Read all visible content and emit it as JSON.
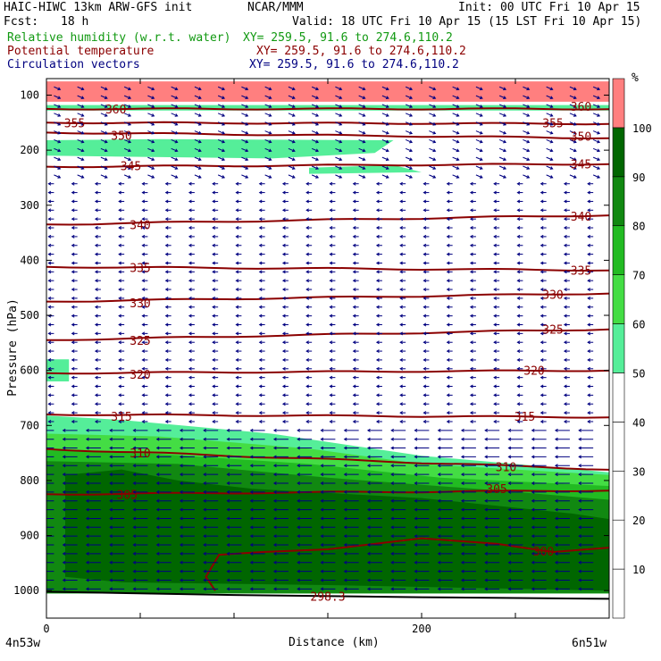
{
  "header": {
    "title": "HAIC-HIWC 13km ARW-GFS init",
    "org": "NCAR/MMM",
    "init": "Init: 00 UTC Fri 10 Apr 15",
    "fcst_label": "Fcst:",
    "fcst_value": "18 h",
    "valid": "Valid: 18 UTC Fri 10 Apr 15 (15 LST Fri 10 Apr 15)",
    "fields": [
      {
        "name": "Relative humidity (w.r.t. water)",
        "xy": "XY= 259.5, 91.6 to 274.6,110.2",
        "color": "#119911"
      },
      {
        "name": "Potential temperature",
        "xy": "XY= 259.5, 91.6 to 274.6,110.2",
        "color": "#8b0000"
      },
      {
        "name": "Circulation vectors",
        "xy": "XY= 259.5, 91.6 to 274.6,110.2",
        "color": "#000080"
      }
    ]
  },
  "chart_data": {
    "type": "cross-section (filled contour + line contour + vectors)",
    "xlabel": "Distance (km)",
    "ylabel": "Pressure (hPa)",
    "xlim": [
      0,
      300
    ],
    "ylim": [
      1050,
      70
    ],
    "x_ticks": [
      0,
      200
    ],
    "y_ticks": [
      100,
      200,
      300,
      400,
      500,
      600,
      700,
      800,
      900,
      1000
    ],
    "x_endpoints": [
      "4n53w",
      "6n51w"
    ],
    "colorbar": {
      "unit": "%",
      "levels": [
        10,
        20,
        30,
        40,
        50,
        60,
        70,
        80,
        90,
        100
      ],
      "colors": [
        "#ffffff",
        "#ffffff",
        "#ffffff",
        "#ffffff",
        "#ffffff",
        "#55ee99",
        "#44dd44",
        "#22bb22",
        "#118811",
        "#006600",
        "#ff7f7f"
      ]
    },
    "rh_regions": [
      {
        "level": 100,
        "pts": [
          [
            0,
            75
          ],
          [
            300,
            75
          ],
          [
            300,
            112
          ],
          [
            0,
            112
          ]
        ]
      },
      {
        "level": 50,
        "pts": [
          [
            0,
            118
          ],
          [
            300,
            118
          ],
          [
            300,
            128
          ],
          [
            0,
            128
          ]
        ]
      },
      {
        "level": 50,
        "pts": [
          [
            0,
            182
          ],
          [
            60,
            180
          ],
          [
            185,
            182
          ],
          [
            175,
            205
          ],
          [
            120,
            215
          ],
          [
            0,
            210
          ]
        ]
      },
      {
        "level": 50,
        "pts": [
          [
            140,
            232
          ],
          [
            185,
            227
          ],
          [
            200,
            240
          ],
          [
            140,
            243
          ]
        ]
      },
      {
        "level": 50,
        "pts": [
          [
            0,
            580
          ],
          [
            12,
            580
          ],
          [
            12,
            620
          ],
          [
            0,
            620
          ]
        ]
      },
      {
        "level": 50,
        "pts": [
          [
            0,
            682
          ],
          [
            40,
            690
          ],
          [
            120,
            715
          ],
          [
            200,
            755
          ],
          [
            300,
            785
          ],
          [
            300,
            1005
          ],
          [
            0,
            1005
          ]
        ]
      },
      {
        "level": 60,
        "pts": [
          [
            0,
            715
          ],
          [
            60,
            720
          ],
          [
            140,
            742
          ],
          [
            200,
            770
          ],
          [
            300,
            790
          ],
          [
            300,
            1005
          ],
          [
            0,
            1005
          ]
        ]
      },
      {
        "level": 70,
        "pts": [
          [
            0,
            745
          ],
          [
            60,
            752
          ],
          [
            140,
            770
          ],
          [
            210,
            795
          ],
          [
            300,
            810
          ],
          [
            300,
            1005
          ],
          [
            0,
            1005
          ]
        ]
      },
      {
        "level": 80,
        "pts": [
          [
            0,
            765
          ],
          [
            70,
            770
          ],
          [
            150,
            795
          ],
          [
            240,
            818
          ],
          [
            300,
            835
          ],
          [
            300,
            1005
          ],
          [
            0,
            1005
          ]
        ]
      },
      {
        "level": 90,
        "pts": [
          [
            10,
            790
          ],
          [
            40,
            780
          ],
          [
            70,
            800
          ],
          [
            110,
            815
          ],
          [
            200,
            832
          ],
          [
            280,
            860
          ],
          [
            300,
            870
          ],
          [
            300,
            1000
          ],
          [
            150,
            990
          ],
          [
            40,
            985
          ],
          [
            10,
            975
          ]
        ]
      }
    ],
    "theta_contours": [
      {
        "value": 360,
        "p_left": 125,
        "p_right": 125
      },
      {
        "value": 355,
        "p_left": 150,
        "p_right": 152
      },
      {
        "value": 350,
        "p_left": 168,
        "p_right": 178
      },
      {
        "value": 345,
        "p_left": 230,
        "p_right": 225
      },
      {
        "value": 340,
        "p_left": 335,
        "p_right": 318
      },
      {
        "value": 335,
        "p_left": 412,
        "p_right": 418
      },
      {
        "value": 330,
        "p_left": 475,
        "p_right": 460
      },
      {
        "value": 325,
        "p_left": 545,
        "p_right": 525
      },
      {
        "value": 320,
        "p_left": 605,
        "p_right": 600
      },
      {
        "value": 315,
        "p_left": 680,
        "p_right": 685
      },
      {
        "value": 310,
        "p_left": 743,
        "p_right": 780
      },
      {
        "value": 305,
        "p_left": 825,
        "p_right": 818
      }
    ],
    "theta_labels": [
      {
        "text": "360",
        "x": 37,
        "p": 125
      },
      {
        "text": "360",
        "x": 285,
        "p": 120
      },
      {
        "text": "355",
        "x": 15,
        "p": 150
      },
      {
        "text": "355",
        "x": 270,
        "p": 150
      },
      {
        "text": "350",
        "x": 40,
        "p": 173
      },
      {
        "text": "350",
        "x": 285,
        "p": 175
      },
      {
        "text": "345",
        "x": 45,
        "p": 228
      },
      {
        "text": "345",
        "x": 285,
        "p": 225
      },
      {
        "text": "340",
        "x": 50,
        "p": 335
      },
      {
        "text": "340",
        "x": 285,
        "p": 320
      },
      {
        "text": "335",
        "x": 50,
        "p": 413
      },
      {
        "text": "335",
        "x": 285,
        "p": 418
      },
      {
        "text": "330",
        "x": 50,
        "p": 477
      },
      {
        "text": "330",
        "x": 270,
        "p": 462
      },
      {
        "text": "325",
        "x": 50,
        "p": 545
      },
      {
        "text": "325",
        "x": 270,
        "p": 525
      },
      {
        "text": "320",
        "x": 50,
        "p": 607
      },
      {
        "text": "320",
        "x": 260,
        "p": 600
      },
      {
        "text": "315",
        "x": 40,
        "p": 683
      },
      {
        "text": "315",
        "x": 255,
        "p": 683
      },
      {
        "text": "310",
        "x": 50,
        "p": 750
      },
      {
        "text": "310",
        "x": 245,
        "p": 775
      },
      {
        "text": "305",
        "x": 43,
        "p": 825
      },
      {
        "text": "305",
        "x": 240,
        "p": 815
      },
      {
        "text": "300",
        "x": 265,
        "p": 928
      },
      {
        "text": "298.3",
        "x": 150,
        "p": 1010
      }
    ],
    "warm_closed_contour": {
      "value": "300",
      "pts": [
        [
          90,
          1000
        ],
        [
          85,
          975
        ],
        [
          92,
          935
        ],
        [
          115,
          930
        ],
        [
          150,
          925
        ],
        [
          200,
          905
        ],
        [
          240,
          915
        ],
        [
          270,
          930
        ],
        [
          300,
          922
        ]
      ]
    },
    "winds": [
      {
        "p_top": 70,
        "p_bot": 250,
        "u": 7,
        "w": -3,
        "color": "#000080"
      },
      {
        "p_top": 250,
        "p_bot": 700,
        "u": -6,
        "w": 0,
        "color": "#000080"
      },
      {
        "p_top": 700,
        "p_bot": 1000,
        "u": -16,
        "w": 0,
        "color": "#000080"
      }
    ]
  }
}
